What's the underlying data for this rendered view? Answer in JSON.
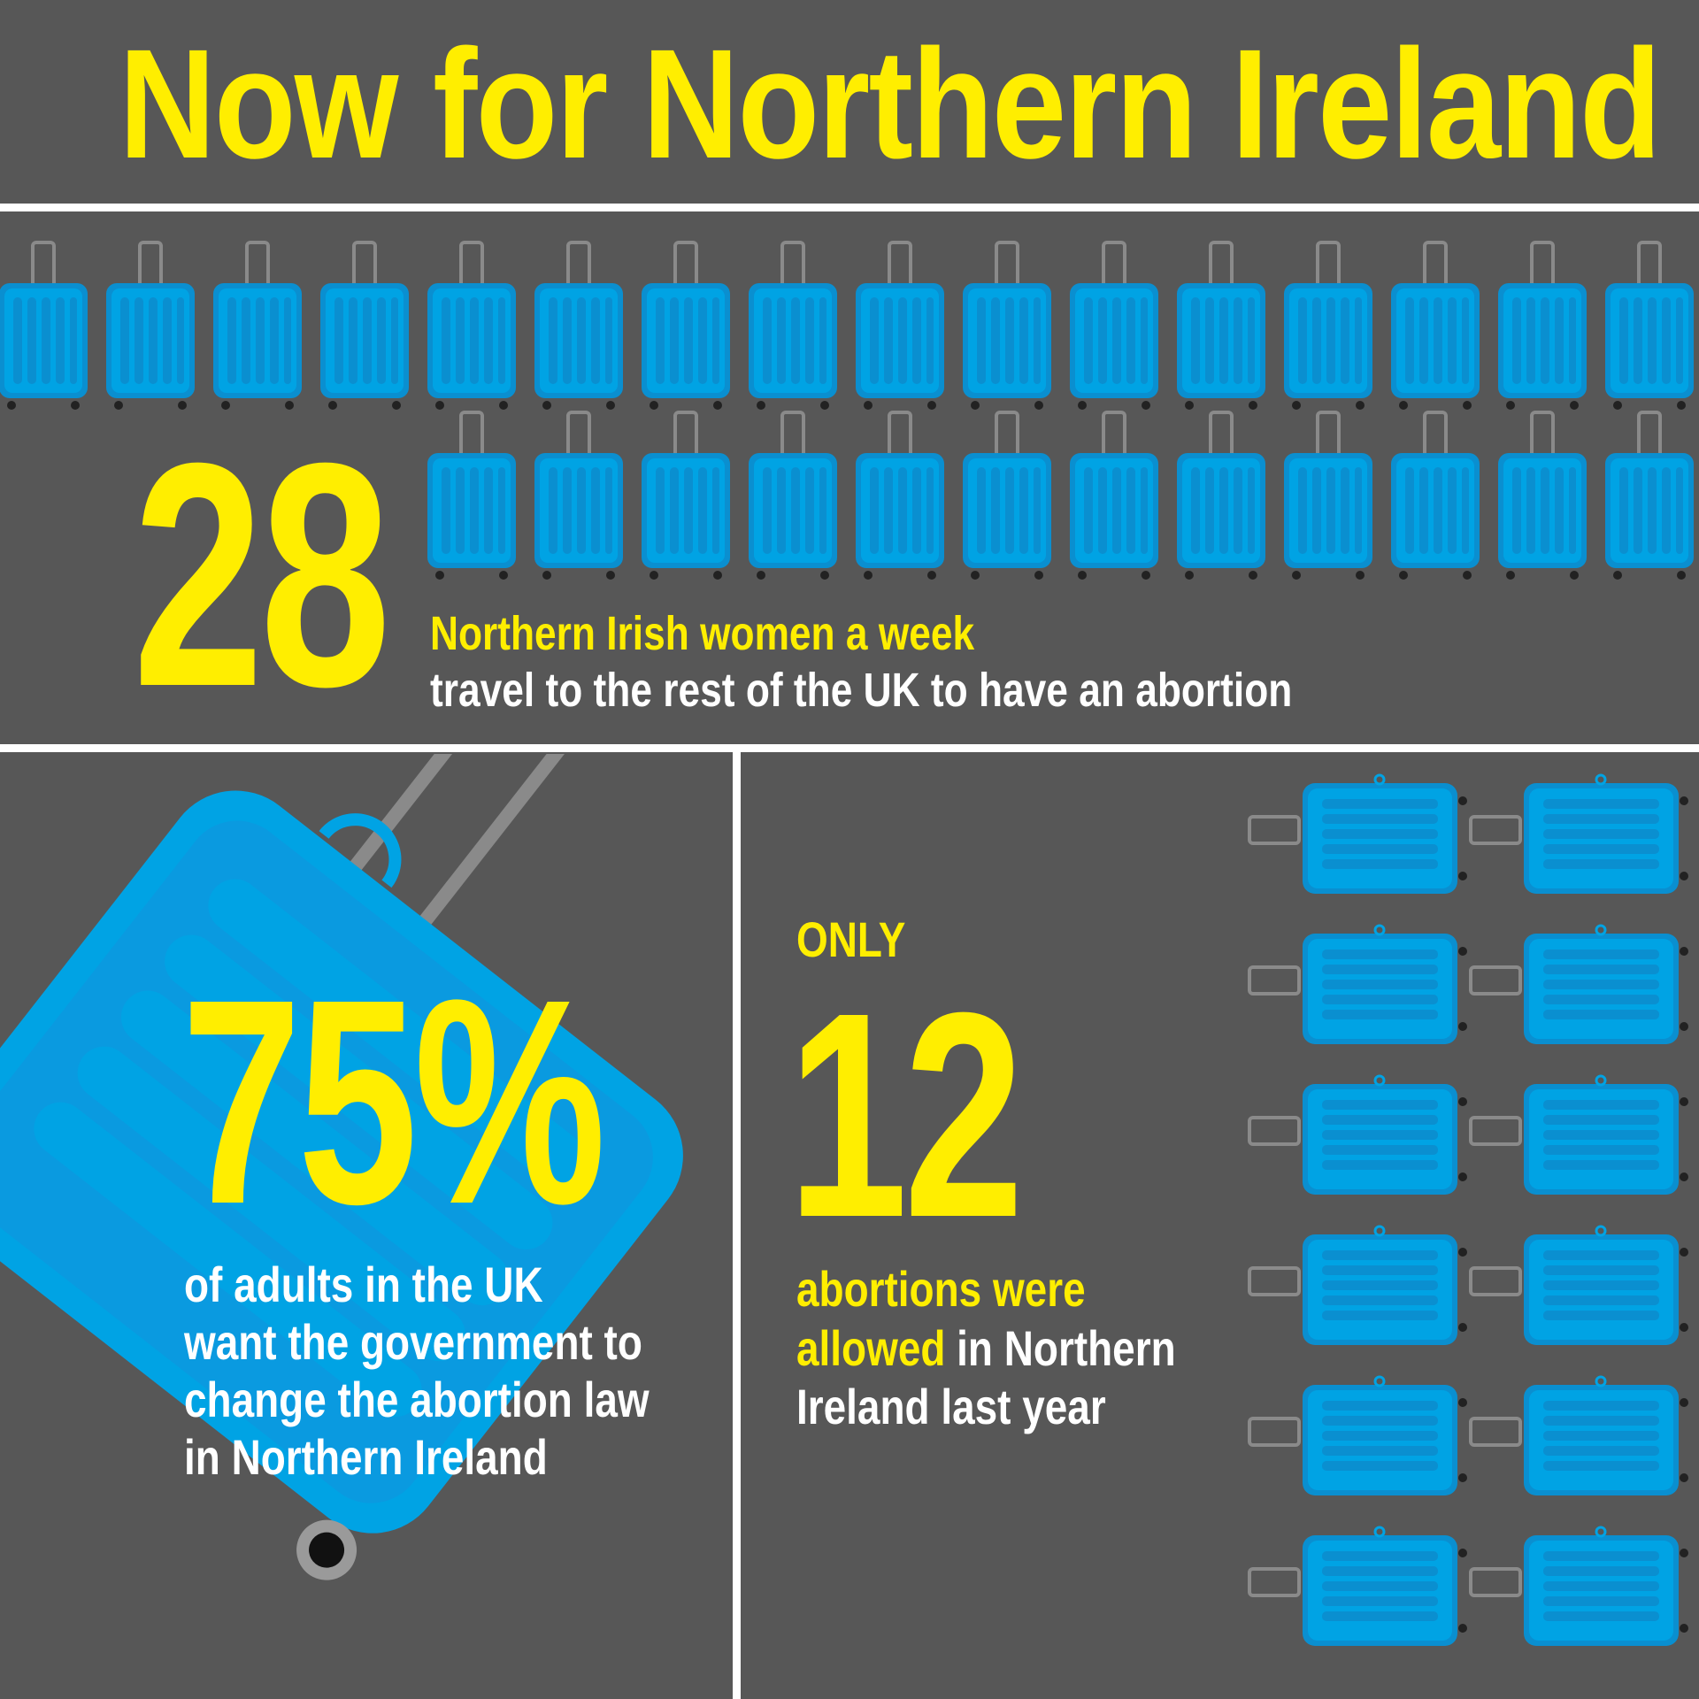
{
  "title": "Now for Northern Ireland",
  "colors": {
    "background": "#575757",
    "accent_yellow": "#ffee00",
    "suitcase_blue": "#00a3e4",
    "suitcase_dark": "#0a8fd0",
    "handle_gray": "#8a8a8a"
  },
  "stat_travel": {
    "number": "28",
    "line1": "Northern Irish women a week",
    "line2": "travel to the rest of the UK to have an abortion",
    "icon_count": 28
  },
  "stat_poll": {
    "number": "75%",
    "lines": [
      "of adults in the UK",
      "want the government to",
      "change the abortion law",
      "in Northern Ireland"
    ]
  },
  "stat_allowed": {
    "prefix": "ONLY",
    "number": "12",
    "line1_yellow": "abortions were",
    "line2_yellow": "allowed",
    "line2_white": " in Northern",
    "line3_white": "Ireland last year",
    "icon_count": 12
  },
  "icons": {
    "upright": "suitcase-icon",
    "sideways": "suitcase-sideways-icon",
    "large": "large-tilted-suitcase-icon"
  }
}
